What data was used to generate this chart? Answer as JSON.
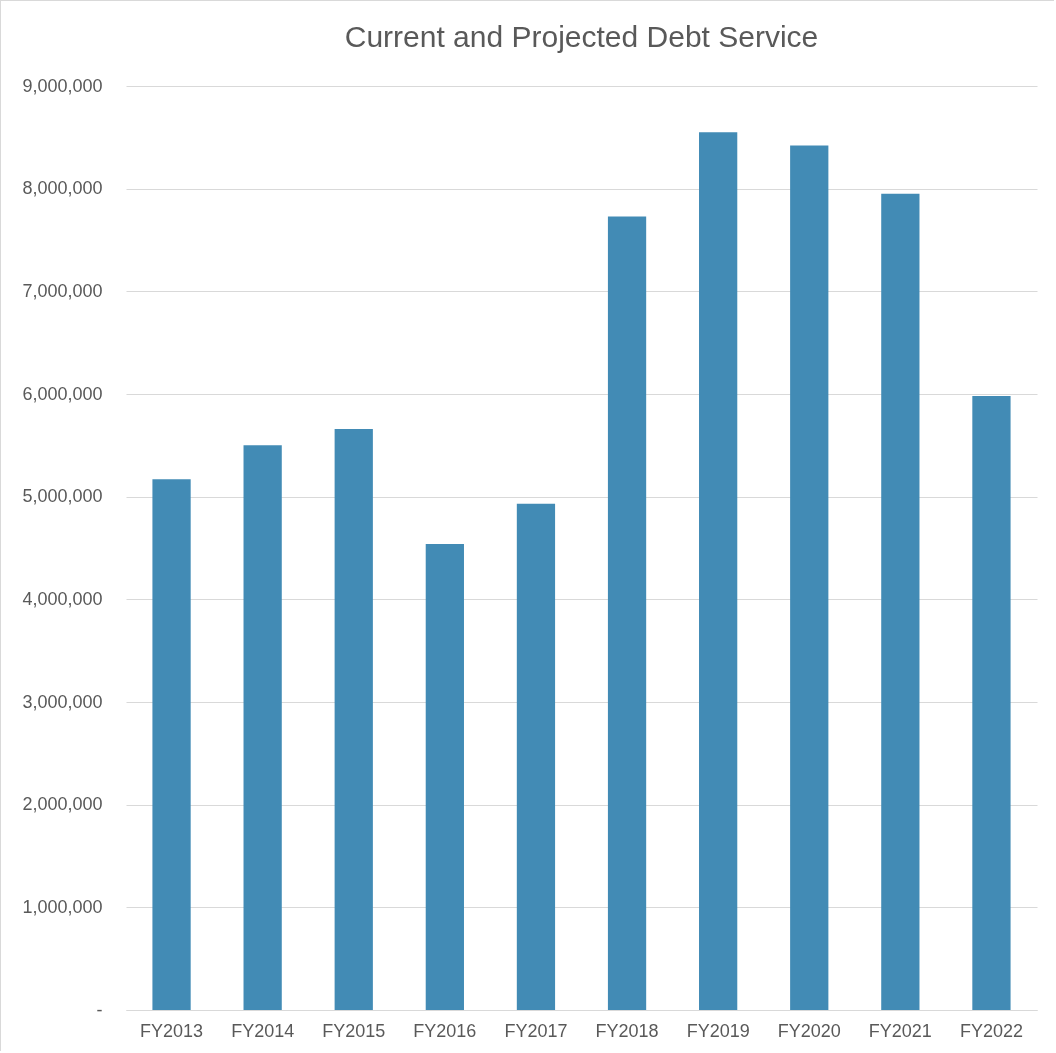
{
  "chart_data": {
    "type": "bar",
    "title": "Current and Projected Debt Service",
    "categories": [
      "FY2013",
      "FY2014",
      "FY2015",
      "FY2016",
      "FY2017",
      "FY2018",
      "FY2019",
      "FY2020",
      "FY2021",
      "FY2022"
    ],
    "values": [
      5170000,
      5500000,
      5660000,
      4540000,
      4930000,
      7730000,
      8550000,
      8420000,
      7950000,
      5980000
    ],
    "color": "#428bb5",
    "ylim": [
      0,
      9000000
    ],
    "yticks": [
      {
        "value": 0,
        "label": "-"
      },
      {
        "value": 1000000,
        "label": "1,000,000"
      },
      {
        "value": 2000000,
        "label": "2,000,000"
      },
      {
        "value": 3000000,
        "label": "3,000,000"
      },
      {
        "value": 4000000,
        "label": "4,000,000"
      },
      {
        "value": 5000000,
        "label": "5,000,000"
      },
      {
        "value": 6000000,
        "label": "6,000,000"
      },
      {
        "value": 7000000,
        "label": "7,000,000"
      },
      {
        "value": 8000000,
        "label": "8,000,000"
      },
      {
        "value": 9000000,
        "label": "9,000,000"
      }
    ],
    "grid": "y"
  }
}
